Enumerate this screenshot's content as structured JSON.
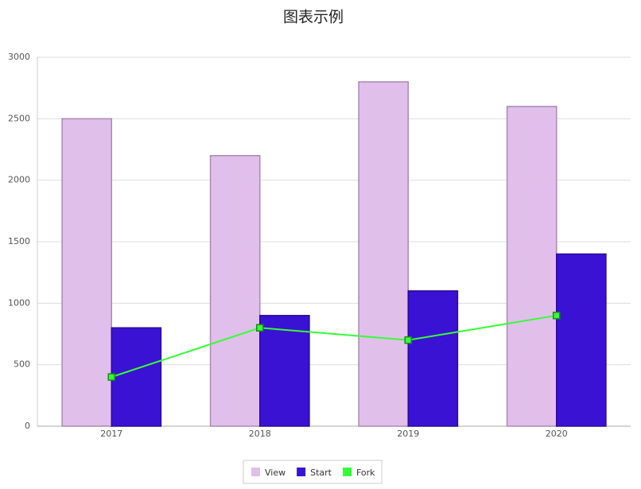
{
  "chart_data": {
    "type": "bar",
    "title": "图表示例",
    "categories": [
      "2017",
      "2018",
      "2019",
      "2020"
    ],
    "series": [
      {
        "name": "View",
        "type": "bar",
        "color": "#e1bfeb",
        "values": [
          2500,
          2200,
          2800,
          2600
        ]
      },
      {
        "name": "Start",
        "type": "bar",
        "color": "#3a12d4",
        "values": [
          800,
          900,
          1100,
          1400
        ]
      },
      {
        "name": "Fork",
        "type": "line",
        "color": "#33ff33",
        "values": [
          400,
          800,
          700,
          900
        ]
      }
    ],
    "ylim": [
      0,
      3000
    ],
    "yticks": [
      0,
      500,
      1000,
      1500,
      2000,
      2500,
      3000
    ],
    "grid": true,
    "legend": "bottom"
  }
}
